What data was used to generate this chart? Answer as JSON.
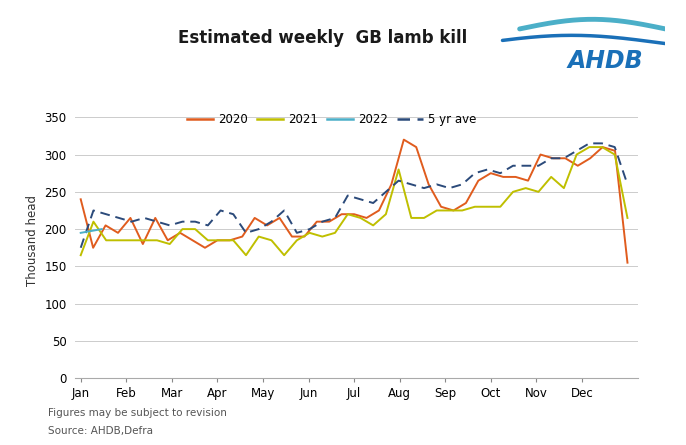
{
  "title": "Estimated weekly  GB lamb kill",
  "ylabel": "Thousand head",
  "ylim": [
    0,
    370
  ],
  "yticks": [
    0,
    50,
    100,
    150,
    200,
    250,
    300,
    350
  ],
  "footnote1": "Figures may be subject to revision",
  "footnote2": "Source: AHDB,Defra",
  "months": [
    "Jan",
    "Feb",
    "Mar",
    "Apr",
    "May",
    "Jun",
    "Jul",
    "Aug",
    "Sep",
    "Oct",
    "Nov",
    "Dec"
  ],
  "series_2020": [
    240,
    175,
    205,
    195,
    215,
    180,
    215,
    185,
    195,
    185,
    175,
    185,
    185,
    190,
    215,
    205,
    215,
    190,
    190,
    210,
    210,
    220,
    220,
    215,
    225,
    260,
    320,
    310,
    260,
    230,
    225,
    235,
    265,
    275,
    270,
    270,
    265,
    300,
    295,
    295,
    285,
    295,
    310,
    305,
    155
  ],
  "series_2021": [
    165,
    210,
    185,
    185,
    185,
    185,
    185,
    180,
    200,
    200,
    185,
    185,
    185,
    165,
    190,
    185,
    165,
    185,
    195,
    190,
    195,
    220,
    215,
    205,
    220,
    280,
    215,
    215,
    225,
    225,
    225,
    230,
    230,
    230,
    250,
    255,
    250,
    270,
    255,
    300,
    310,
    310,
    300,
    215
  ],
  "series_2022": [
    195,
    200
  ],
  "series_5yr_ave": [
    175,
    225,
    220,
    215,
    210,
    215,
    210,
    205,
    210,
    210,
    205,
    225,
    220,
    195,
    200,
    210,
    225,
    195,
    200,
    210,
    215,
    245,
    240,
    235,
    250,
    265,
    260,
    255,
    260,
    255,
    260,
    275,
    280,
    275,
    285,
    285,
    285,
    295,
    295,
    305,
    315,
    315,
    310,
    260
  ],
  "color_2020": "#E05C1E",
  "color_2021": "#BFBF00",
  "color_2022": "#4BAFC8",
  "color_5yr_ave": "#2B4A7A",
  "background_color": "#FFFFFF"
}
